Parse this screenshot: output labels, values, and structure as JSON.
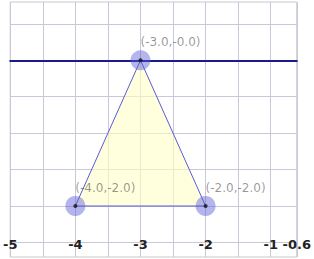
{
  "chart_data": {
    "type": "polygon",
    "x": [
      -3,
      -4,
      -2
    ],
    "values": [
      0,
      -2,
      -2
    ],
    "value_labels": [
      "(-3.0,-0.0)",
      "(-4.0,-2.0)",
      "(-2.0,-2.0)"
    ],
    "data_labels": true,
    "color": "#5a5ad8",
    "marker": "circle",
    "xlim": [
      -5,
      -0.6
    ],
    "xticks": [
      -5,
      -4,
      -3,
      -2,
      -1
    ],
    "ylim": [
      -2.7,
      0.8
    ],
    "yticks": [
      -2.5,
      -2,
      -1.5,
      -1,
      -0.5,
      0,
      0.5
    ],
    "tick_labels": "x",
    "grid": true
  }
}
